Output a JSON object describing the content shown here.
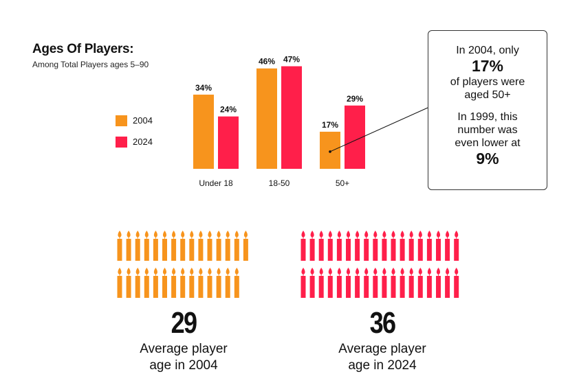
{
  "title": "Ages Of Players:",
  "subtitle": "Among Total Players ages 5–90",
  "legend": [
    {
      "label": "2004",
      "color": "#F7941D"
    },
    {
      "label": "2024",
      "color": "#FF1F4A"
    }
  ],
  "chart_data": {
    "type": "bar",
    "title": "Ages Of Players:",
    "subtitle": "Among Total Players ages 5–90",
    "categories": [
      "Under 18",
      "18-50",
      "50+"
    ],
    "series": [
      {
        "name": "2004",
        "values": [
          34,
          46,
          17
        ],
        "labels": [
          "34%",
          "46%",
          "17%"
        ],
        "color": "#F7941D"
      },
      {
        "name": "2024",
        "values": [
          24,
          47,
          29
        ],
        "labels": [
          "24%",
          "47%",
          "29%"
        ],
        "color": "#FF1F4A"
      }
    ],
    "ylim": [
      0,
      50
    ],
    "grid": false,
    "legend_position": "left"
  },
  "callout": {
    "line1": "In 2004, only",
    "big1": "17%",
    "line2": "of players were",
    "line3": "aged 50+",
    "line4": "In 1999, this",
    "line5": "number was",
    "line6": "even lower at",
    "big2": "9%"
  },
  "stats": [
    {
      "value": "29",
      "line1": "Average player",
      "line2": "age in 2004",
      "color": "#F7941D",
      "candles": 29
    },
    {
      "value": "36",
      "line1": "Average player",
      "line2": "age in 2024",
      "color": "#FF1F4A",
      "candles": 36
    }
  ]
}
